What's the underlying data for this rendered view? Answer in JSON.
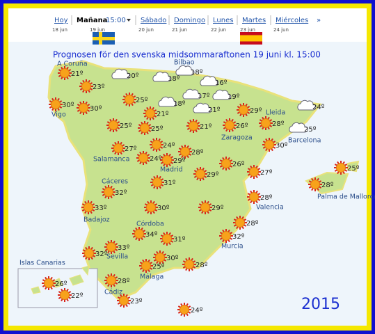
{
  "nav": {
    "days": [
      {
        "name": "Hoy",
        "date": "18 jun"
      },
      {
        "name": "Mañana",
        "time": "15:00",
        "date": "19 jun"
      },
      {
        "name": "Sábado",
        "date": "20 jun"
      },
      {
        "name": "Domingo",
        "date": "21 jun"
      },
      {
        "name": "Lunes",
        "date": "22 jun"
      },
      {
        "name": "Martes",
        "date": "23 jun"
      },
      {
        "name": "Miércoles",
        "date": "24 jun"
      }
    ],
    "more": "»"
  },
  "title": "Prognosen för den svenska midsommaraftonen 19 juni kl. 15:00",
  "cities": [
    "A Coruña",
    "Bilbao",
    "Vigo",
    "Lleida",
    "Zaragoza",
    "Barcelona",
    "Salamanca",
    "Madrid",
    "Cáceres",
    "Palma de Mallorca",
    "Badajoz",
    "Valencia",
    "Córdoba",
    "Sevilla",
    "Murcia",
    "Cádiz",
    "Málaga",
    "Islas Canarias"
  ],
  "forecasts": [
    {
      "temp": "21º",
      "icon": "sun"
    },
    {
      "temp": "23º",
      "icon": "sun"
    },
    {
      "temp": "20º",
      "icon": "cloud"
    },
    {
      "temp": "18º",
      "icon": "cloud"
    },
    {
      "temp": "18º",
      "icon": "cloud"
    },
    {
      "temp": "16º",
      "icon": "cloud"
    },
    {
      "temp": "30º",
      "icon": "sun"
    },
    {
      "temp": "30º",
      "icon": "sun"
    },
    {
      "temp": "25º",
      "icon": "sun"
    },
    {
      "temp": "18º",
      "icon": "cloud"
    },
    {
      "temp": "17º",
      "icon": "cloud"
    },
    {
      "temp": "19º",
      "icon": "cloud"
    },
    {
      "temp": "21º",
      "icon": "cloud"
    },
    {
      "temp": "21º",
      "icon": "sun"
    },
    {
      "temp": "29º",
      "icon": "sun"
    },
    {
      "temp": "24º",
      "icon": "cloud"
    },
    {
      "temp": "25º",
      "icon": "sun"
    },
    {
      "temp": "25º",
      "icon": "sun"
    },
    {
      "temp": "21º",
      "icon": "sun"
    },
    {
      "temp": "26º",
      "icon": "sun"
    },
    {
      "temp": "28º",
      "icon": "sun"
    },
    {
      "temp": "25º",
      "icon": "cloud"
    },
    {
      "temp": "27º",
      "icon": "sun"
    },
    {
      "temp": "24º",
      "icon": "sun"
    },
    {
      "temp": "24º",
      "icon": "sun"
    },
    {
      "temp": "28º",
      "icon": "sun"
    },
    {
      "temp": "29º",
      "icon": "sun"
    },
    {
      "temp": "30º",
      "icon": "sun"
    },
    {
      "temp": "26º",
      "icon": "sun"
    },
    {
      "temp": "29º",
      "icon": "sun"
    },
    {
      "temp": "27º",
      "icon": "sun"
    },
    {
      "temp": "25º",
      "icon": "sun"
    },
    {
      "temp": "31º",
      "icon": "sun"
    },
    {
      "temp": "28º",
      "icon": "sun"
    },
    {
      "temp": "32º",
      "icon": "sun"
    },
    {
      "temp": "28º",
      "icon": "sun"
    },
    {
      "temp": "33º",
      "icon": "sun"
    },
    {
      "temp": "30º",
      "icon": "sun"
    },
    {
      "temp": "29º",
      "icon": "sun"
    },
    {
      "temp": "28º",
      "icon": "sun"
    },
    {
      "temp": "34º",
      "icon": "sun"
    },
    {
      "temp": "31º",
      "icon": "sun"
    },
    {
      "temp": "32º",
      "icon": "sun"
    },
    {
      "temp": "32º",
      "icon": "sun"
    },
    {
      "temp": "33º",
      "icon": "sun"
    },
    {
      "temp": "30º",
      "icon": "sun"
    },
    {
      "temp": "25º",
      "icon": "sun"
    },
    {
      "temp": "28º",
      "icon": "sun"
    },
    {
      "temp": "28º",
      "icon": "sun"
    },
    {
      "temp": "23º",
      "icon": "sun"
    },
    {
      "temp": "24º",
      "icon": "sun"
    },
    {
      "temp": "26º",
      "icon": "sun"
    },
    {
      "temp": "22º",
      "icon": "sun"
    }
  ],
  "year": "2015"
}
